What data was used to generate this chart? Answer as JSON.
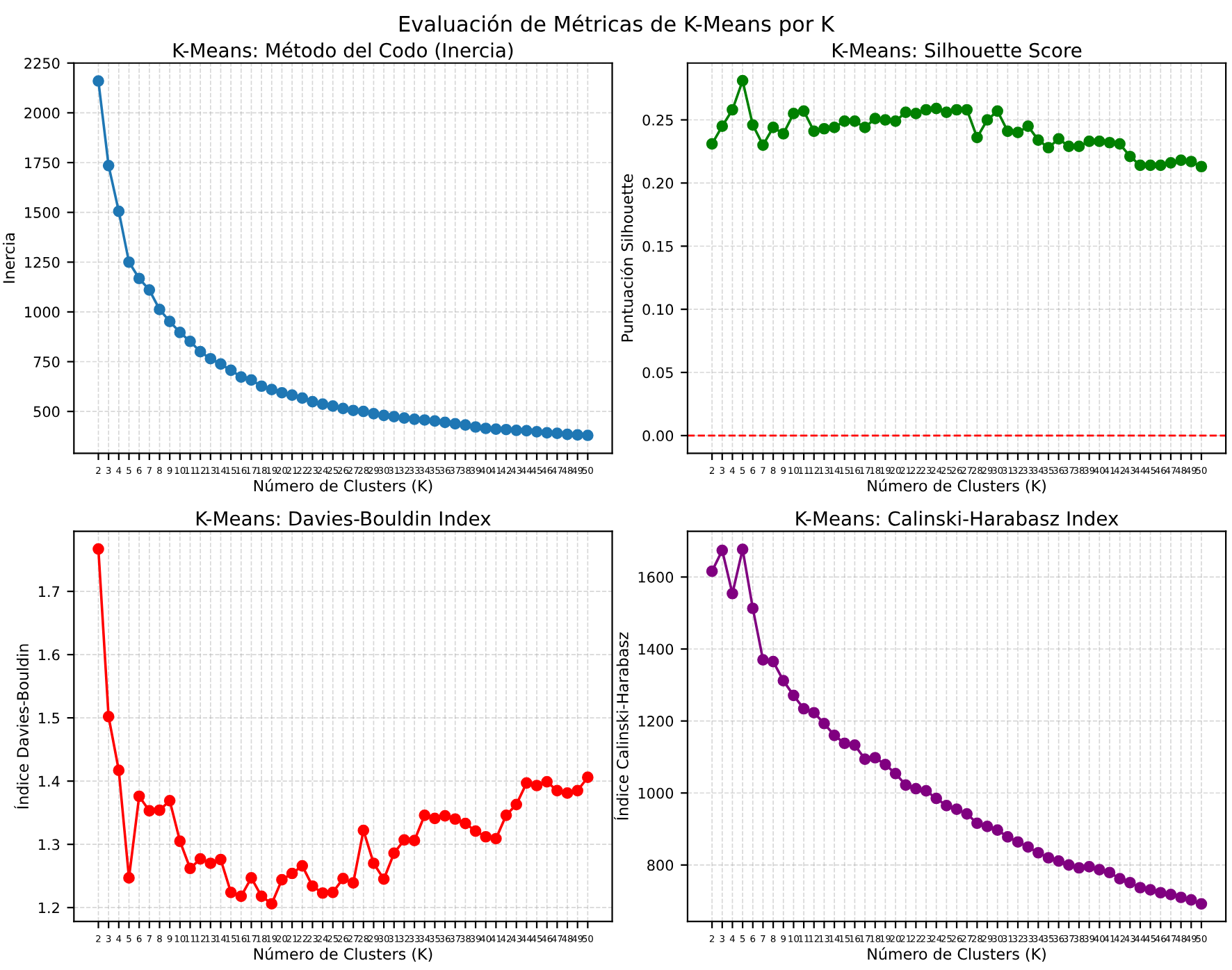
{
  "chart_data": [
    {
      "type": "line",
      "title": "K-Means: Método del Codo (Inercia)",
      "xlabel": "Número de Clusters (K)",
      "ylabel": "Inercia",
      "annotations": [
        "Evaluación de Métricas de K-Means por K"
      ],
      "x": [
        2,
        3,
        4,
        5,
        6,
        7,
        8,
        9,
        10,
        11,
        12,
        13,
        14,
        15,
        16,
        17,
        18,
        19,
        20,
        21,
        22,
        23,
        24,
        25,
        26,
        27,
        28,
        29,
        30,
        31,
        32,
        33,
        34,
        35,
        36,
        37,
        38,
        39,
        40,
        41,
        42,
        43,
        44,
        45,
        46,
        47,
        48,
        49,
        50
      ],
      "series": [
        {
          "color": "#1f77b4",
          "values": [
            2160,
            1735,
            1505,
            1250,
            1168,
            1110,
            1012,
            952,
            897,
            852,
            800,
            765,
            738,
            707,
            673,
            658,
            627,
            610,
            594,
            582,
            567,
            549,
            537,
            527,
            515,
            505,
            500,
            489,
            480,
            474,
            467,
            461,
            457,
            452,
            445,
            438,
            432,
            422,
            415,
            411,
            409,
            405,
            403,
            398,
            393,
            390,
            385,
            382,
            380
          ]
        }
      ],
      "xlim": [
        -0.4,
        52.4
      ],
      "xticks": [
        2,
        3,
        4,
        5,
        6,
        7,
        8,
        9,
        10,
        11,
        12,
        13,
        14,
        15,
        16,
        17,
        18,
        19,
        20,
        21,
        22,
        23,
        24,
        25,
        26,
        27,
        28,
        29,
        30,
        31,
        32,
        33,
        34,
        35,
        36,
        37,
        38,
        39,
        40,
        41,
        42,
        43,
        44,
        45,
        46,
        47,
        48,
        49,
        50
      ],
      "ylim": [
        290,
        2250
      ],
      "yticks": [
        500,
        750,
        1000,
        1250,
        1500,
        1750,
        2000,
        2250
      ],
      "grid": true,
      "marker": "circle",
      "line_style": "solid"
    },
    {
      "type": "line",
      "title": "K-Means: Silhouette Score",
      "xlabel": "Número de Clusters (K)",
      "ylabel": "Puntuación Silhouette",
      "x": [
        2,
        3,
        4,
        5,
        6,
        7,
        8,
        9,
        10,
        11,
        12,
        13,
        14,
        15,
        16,
        17,
        18,
        19,
        20,
        21,
        22,
        23,
        24,
        25,
        26,
        27,
        28,
        29,
        30,
        31,
        32,
        33,
        34,
        35,
        36,
        37,
        38,
        39,
        40,
        41,
        42,
        43,
        44,
        45,
        46,
        47,
        48,
        49,
        50
      ],
      "series": [
        {
          "color": "#008000",
          "values": [
            0.231,
            0.245,
            0.258,
            0.281,
            0.246,
            0.23,
            0.244,
            0.239,
            0.255,
            0.257,
            0.241,
            0.243,
            0.244,
            0.249,
            0.249,
            0.244,
            0.251,
            0.25,
            0.249,
            0.256,
            0.255,
            0.258,
            0.259,
            0.256,
            0.258,
            0.258,
            0.236,
            0.25,
            0.257,
            0.241,
            0.24,
            0.245,
            0.234,
            0.228,
            0.235,
            0.229,
            0.229,
            0.233,
            0.233,
            0.232,
            0.231,
            0.221,
            0.214,
            0.214,
            0.214,
            0.216,
            0.218,
            0.217,
            0.213
          ]
        }
      ],
      "xlim": [
        -0.4,
        52.4
      ],
      "xticks": [
        2,
        3,
        4,
        5,
        6,
        7,
        8,
        9,
        10,
        11,
        12,
        13,
        14,
        15,
        16,
        17,
        18,
        19,
        20,
        21,
        22,
        23,
        24,
        25,
        26,
        27,
        28,
        29,
        30,
        31,
        32,
        33,
        34,
        35,
        36,
        37,
        38,
        39,
        40,
        41,
        42,
        43,
        44,
        45,
        46,
        47,
        48,
        49,
        50
      ],
      "ylim": [
        -0.014,
        0.295
      ],
      "yticks": [
        {
          "value": 0,
          "label": "0.00"
        },
        {
          "value": 0.05,
          "label": "0.05"
        },
        {
          "value": 0.1,
          "label": "0.10"
        },
        {
          "value": 0.15,
          "label": "0.15"
        },
        {
          "value": 0.2,
          "label": "0.20"
        },
        {
          "value": 0.25,
          "label": "0.25"
        }
      ],
      "ref_lines": [
        {
          "axis": "y",
          "value": 0,
          "color": "#ff0000",
          "line_style": "dashed"
        }
      ],
      "grid": true,
      "marker": "circle",
      "line_style": "solid"
    },
    {
      "type": "line",
      "title": "K-Means: Davies-Bouldin Index",
      "xlabel": "Número de Clusters (K)",
      "ylabel": "Índice Davies-Bouldin",
      "x": [
        2,
        3,
        4,
        5,
        6,
        7,
        8,
        9,
        10,
        11,
        12,
        13,
        14,
        15,
        16,
        17,
        18,
        19,
        20,
        21,
        22,
        23,
        24,
        25,
        26,
        27,
        28,
        29,
        30,
        31,
        32,
        33,
        34,
        35,
        36,
        37,
        38,
        39,
        40,
        41,
        42,
        43,
        44,
        45,
        46,
        47,
        48,
        49,
        50
      ],
      "series": [
        {
          "color": "#ff0000",
          "values": [
            1.767,
            1.502,
            1.417,
            1.247,
            1.376,
            1.353,
            1.354,
            1.369,
            1.305,
            1.262,
            1.277,
            1.27,
            1.276,
            1.224,
            1.218,
            1.247,
            1.218,
            1.206,
            1.244,
            1.254,
            1.266,
            1.234,
            1.223,
            1.224,
            1.246,
            1.239,
            1.322,
            1.27,
            1.245,
            1.286,
            1.307,
            1.306,
            1.346,
            1.341,
            1.345,
            1.34,
            1.333,
            1.321,
            1.312,
            1.309,
            1.346,
            1.363,
            1.397,
            1.393,
            1.399,
            1.385,
            1.381,
            1.385,
            1.406
          ]
        }
      ],
      "xlim": [
        -0.4,
        52.4
      ],
      "xticks": [
        2,
        3,
        4,
        5,
        6,
        7,
        8,
        9,
        10,
        11,
        12,
        13,
        14,
        15,
        16,
        17,
        18,
        19,
        20,
        21,
        22,
        23,
        24,
        25,
        26,
        27,
        28,
        29,
        30,
        31,
        32,
        33,
        34,
        35,
        36,
        37,
        38,
        39,
        40,
        41,
        42,
        43,
        44,
        45,
        46,
        47,
        48,
        49,
        50
      ],
      "ylim": [
        1.178,
        1.795
      ],
      "yticks": [
        1.2,
        1.3,
        1.4,
        1.5,
        1.6,
        1.7
      ],
      "grid": true,
      "marker": "circle",
      "line_style": "solid"
    },
    {
      "type": "line",
      "title": "K-Means: Calinski-Harabasz Index",
      "xlabel": "Número de Clusters (K)",
      "ylabel": "Índice Calinski-Harabasz",
      "x": [
        2,
        3,
        4,
        5,
        6,
        7,
        8,
        9,
        10,
        11,
        12,
        13,
        14,
        15,
        16,
        17,
        18,
        19,
        20,
        21,
        22,
        23,
        24,
        25,
        26,
        27,
        28,
        29,
        30,
        31,
        32,
        33,
        34,
        35,
        36,
        37,
        38,
        39,
        40,
        41,
        42,
        43,
        44,
        45,
        46,
        47,
        48,
        49,
        50
      ],
      "series": [
        {
          "color": "#800080",
          "values": [
            1616,
            1674,
            1554,
            1677,
            1513,
            1370,
            1365,
            1312,
            1271,
            1234,
            1223,
            1193,
            1160,
            1138,
            1133,
            1094,
            1098,
            1079,
            1054,
            1022,
            1012,
            1006,
            985,
            965,
            955,
            942,
            916,
            907,
            897,
            878,
            864,
            850,
            834,
            820,
            811,
            800,
            792,
            795,
            787,
            779,
            762,
            751,
            737,
            731,
            723,
            718,
            710,
            703,
            692
          ]
        }
      ],
      "xlim": [
        -0.4,
        52.4
      ],
      "xticks": [
        2,
        3,
        4,
        5,
        6,
        7,
        8,
        9,
        10,
        11,
        12,
        13,
        14,
        15,
        16,
        17,
        18,
        19,
        20,
        21,
        22,
        23,
        24,
        25,
        26,
        27,
        28,
        29,
        30,
        31,
        32,
        33,
        34,
        35,
        36,
        37,
        38,
        39,
        40,
        41,
        42,
        43,
        44,
        45,
        46,
        47,
        48,
        49,
        50
      ],
      "ylim": [
        643,
        1727
      ],
      "yticks": [
        800,
        1000,
        1200,
        1400,
        1600
      ],
      "grid": true,
      "marker": "circle",
      "line_style": "solid"
    }
  ]
}
